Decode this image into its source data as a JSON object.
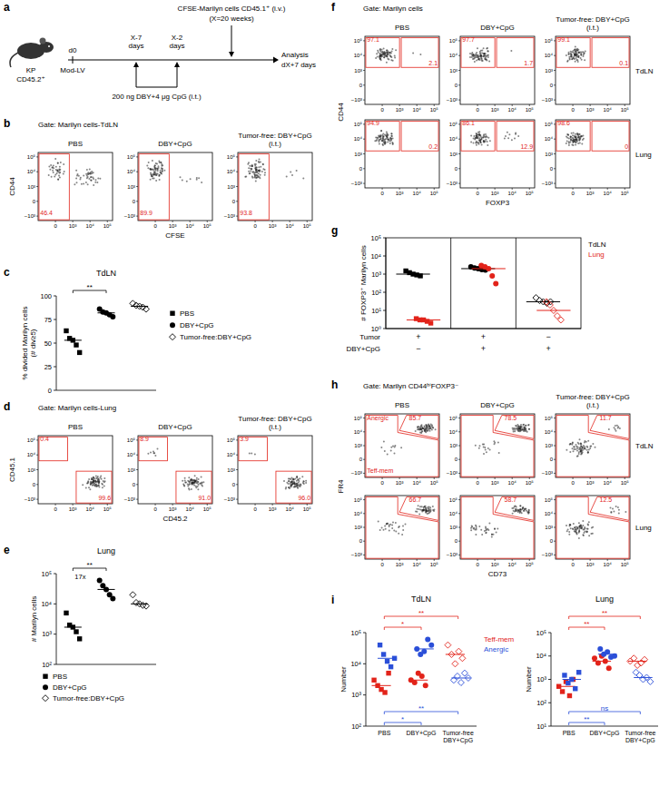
{
  "schematic": {
    "letter": "a",
    "mouse": [
      "KP",
      "CD45.2⁺"
    ],
    "start": [
      "d0",
      "Mod-LV"
    ],
    "doses": [
      "X-7 days",
      "X-2 days"
    ],
    "dose_text": "200 ng DBY+4 μg CpG (i.t.)",
    "transfer": [
      "CFSE-Marilyn cells CD45.1⁺ (i.v.)",
      "(X=20 weeks)"
    ],
    "end": [
      "Analysis",
      "dX+7 days"
    ]
  },
  "flow_axes": {
    "xlim": [
      -1000,
      200000
    ],
    "ylim": [
      -2000,
      200000
    ],
    "xticks": [
      0,
      {
        "value": 1000,
        "label": "10³"
      },
      {
        "value": 10000,
        "label": "10⁴"
      },
      {
        "value": 100000,
        "label": "10⁵"
      }
    ],
    "yticks": [
      {
        "value": -1000,
        "label": "−10³"
      },
      0,
      {
        "value": 1000,
        "label": "10³"
      },
      {
        "value": 10000,
        "label": "10⁴"
      },
      {
        "value": 100000,
        "label": "10⁵"
      }
    ]
  },
  "flow_panels": [
    {
      "letter": "b",
      "gate_title": "Gate: Marilyn cells-TdLN",
      "x_label": "CFSE",
      "y_label": "CD44",
      "kind": "cfse",
      "conditions": [
        "PBS",
        "DBY+CpG",
        "Tumor-free: DBY+CpG (i.t.)"
      ],
      "rows": [
        {
          "gates": [
            [
              46.4
            ],
            [
              89.9
            ],
            [
              93.8
            ]
          ]
        }
      ]
    },
    {
      "letter": "d",
      "gate_title": "Gate: Marilyn cells-Lung",
      "x_label": "CD45.2",
      "y_label": "CD45.1",
      "kind": "chimera",
      "conditions": [
        "PBS",
        "DBY+CpG",
        "Tumor-free: DBY+CpG (i.t.)"
      ],
      "rows": [
        {
          "gates": [
            [
              0.4,
              99.6
            ],
            [
              8.9,
              {
                "value": 91.0,
                "label": "91.0"
              }
            ],
            [
              3.9,
              {
                "value": 96.0,
                "label": "96.0"
              }
            ]
          ]
        }
      ]
    },
    {
      "letter": "f",
      "gate_title": "Gate: Marilyn cells",
      "x_label": "FOXP3",
      "y_label": "CD44",
      "kind": "foxp3",
      "conditions": [
        "PBS",
        "DBY+CpG",
        "Tumor-free: DBY+CpG (i.t.)"
      ],
      "rows": [
        {
          "label": "TdLN",
          "gates": [
            [
              97.1,
              2.1
            ],
            [
              97.7,
              1.7
            ],
            [
              99.1,
              0.1
            ]
          ]
        },
        {
          "label": "Lung",
          "gates": [
            [
              94.9,
              0.2
            ],
            [
              86.1,
              12.9
            ],
            [
              98.6,
              0
            ]
          ]
        }
      ]
    },
    {
      "letter": "h",
      "gate_title": "Gate: Marilyn CD44ʰⁱFOXP3⁻",
      "x_label": "CD73",
      "y_label": "FR4",
      "kind": "fr4",
      "gate_names": [
        "Anergic",
        "Teff-mem"
      ],
      "conditions": [
        "PBS",
        "DBY+CpG",
        "Tumor-free: DBY+CpG (i.t.)"
      ],
      "rows": [
        {
          "label": "TdLN",
          "gates": [
            [
              85.7
            ],
            [
              78.5
            ],
            [
              11.7
            ]
          ]
        },
        {
          "label": "Lung",
          "gates": [
            [
              66.7
            ],
            [
              58.7
            ],
            [
              12.5
            ]
          ]
        }
      ]
    }
  ],
  "chart_data": [
    {
      "letter": "c",
      "type": "dot",
      "title": "TdLN",
      "y_label": "% divided Marilyn cells (# div≥5)",
      "ylim": [
        0,
        100
      ],
      "yticks": [
        0,
        25,
        50,
        75,
        100
      ],
      "categories": [
        "PBS",
        "DBY+CpG",
        "Tumor-free:DBY+CpG"
      ],
      "marker": [
        "square",
        "circle",
        "diamond-open"
      ],
      "tick_labels": "y",
      "legend": "right",
      "series": [
        {
          "color": "#000000",
          "values": [
            [
              63,
              55,
              53,
              48,
              40
            ],
            [
              86,
              83,
              82,
              80,
              78
            ],
            [
              92,
              90,
              89,
              88,
              86
            ]
          ],
          "medians": [
            53,
            82,
            89
          ]
        }
      ],
      "annotations": [
        {
          "from": 0,
          "to": 1,
          "label": "**",
          "position": "top"
        }
      ]
    },
    {
      "letter": "e",
      "type": "dot",
      "title": "Lung",
      "y_label": "# Marilyn cells",
      "log": "y",
      "ylim": [
        100,
        100000
      ],
      "yticks": [
        {
          "value": 100,
          "label": "10²"
        },
        {
          "value": 1000,
          "label": "10³"
        },
        {
          "value": 10000,
          "label": "10⁴"
        },
        {
          "value": 100000,
          "label": "10⁵"
        }
      ],
      "categories": [
        "PBS",
        "DBY+CpG",
        "Tumor-free:DBY+CpG"
      ],
      "marker": [
        "square",
        "circle",
        "diamond-open"
      ],
      "tick_labels": "y",
      "legend": "bottom",
      "series": [
        {
          "color": "#000000",
          "values": [
            [
              5000,
              2000,
              1700,
              1200,
              700
            ],
            [
              60000,
              40000,
              30000,
              20000,
              15000
            ],
            [
              20000,
              11000,
              10000,
              9000,
              8500
            ]
          ],
          "medians": [
            1700,
            30000,
            10000
          ]
        }
      ],
      "annotations": [
        {
          "from": 0,
          "to": 1,
          "label": "**",
          "sublabel": "17x",
          "position": "top"
        }
      ]
    },
    {
      "letter": "g",
      "type": "dot",
      "y_label": "# FOXP3⁺ Marilyn cells",
      "log": "y",
      "ylim": [
        1,
        100000
      ],
      "yticks": [
        {
          "value": 1,
          "label": "10⁰"
        },
        {
          "value": 10,
          "label": "10¹"
        },
        {
          "value": 100,
          "label": "10²"
        },
        {
          "value": 1000,
          "label": "10³"
        },
        {
          "value": 10000,
          "label": "10⁴"
        },
        {
          "value": 100000,
          "label": "10⁵"
        }
      ],
      "categories": [
        null,
        null,
        null
      ],
      "marker": [
        "square",
        "circle",
        "diamond-open"
      ],
      "tick_labels": "y",
      "legend": "right",
      "condition_rows": [
        {
          "label": "Tumor",
          "values": [
            "+",
            "+",
            "−"
          ]
        },
        {
          "label": "DBY+CpG",
          "values": [
            "−",
            "+",
            "+"
          ]
        }
      ],
      "series": [
        {
          "name": "TdLN",
          "color": "#000000",
          "values": [
            [
              1500,
              1200,
              1000,
              900,
              800
            ],
            [
              2500,
              2200,
              2000,
              1800,
              1700
            ],
            [
              50,
              35,
              30,
              25,
              30
            ]
          ],
          "medians": [
            1000,
            2000,
            30
          ]
        },
        {
          "name": "Lung",
          "color": "#e2231a",
          "values": [
            [
              3.5,
              3,
              3,
              2.5,
              2
            ],
            [
              3000,
              2500,
              2000,
              800,
              300
            ],
            [
              30,
              20,
              10,
              5,
              3
            ]
          ],
          "medians": [
            3,
            2000,
            10
          ]
        }
      ]
    },
    {
      "letter": "i",
      "type": "dot",
      "title": "TdLN",
      "y_label": "Number",
      "log": "y",
      "ylim": [
        100,
        100000
      ],
      "yticks": [
        {
          "value": 100,
          "label": "10²"
        },
        {
          "value": 1000,
          "label": "10³"
        },
        {
          "value": 10000,
          "label": "10⁴"
        },
        {
          "value": 100000,
          "label": "10⁵"
        }
      ],
      "categories": [
        "PBS",
        "DBY+CpG",
        "Tumor-free DBY+CpG"
      ],
      "marker": [
        "square",
        "circle",
        "diamond-open"
      ],
      "legend": "right",
      "series": [
        {
          "name": "Teff-mem",
          "color": "#e2231a",
          "values": [
            [
              3000,
              2000,
              1500,
              1200,
              5000
            ],
            [
              3000,
              2500,
              5000,
              4000,
              2000
            ],
            [
              40000,
              20000,
              10000,
              25000,
              15000
            ]
          ],
          "medians": [
            2000,
            3000,
            20000
          ]
        },
        {
          "name": "Anergic",
          "color": "#2b4fd8",
          "values": [
            [
              40000,
              20000,
              12000,
              8000,
              15000
            ],
            [
              30000,
              20000,
              25000,
              60000,
              40000
            ],
            [
              3000,
              4000,
              2500,
              5000,
              3500
            ]
          ],
          "medians": [
            15000,
            30000,
            3500
          ]
        }
      ],
      "annotations": [
        {
          "from": 0,
          "to": 1,
          "label": "*",
          "position": "top",
          "color": "#e2231a"
        },
        {
          "from": 0,
          "to": 2,
          "label": "**",
          "position": "top",
          "color": "#e2231a"
        },
        {
          "from": 0,
          "to": 1,
          "label": "*",
          "position": "bottom",
          "color": "#2b4fd8"
        },
        {
          "from": 0,
          "to": 2,
          "label": "**",
          "position": "bottom",
          "color": "#2b4fd8"
        }
      ]
    },
    {
      "type": "dot",
      "title": "Lung",
      "y_label": "Number",
      "log": "y",
      "ylim": [
        10,
        100000
      ],
      "yticks": [
        {
          "value": 10,
          "label": "10¹"
        },
        {
          "value": 100,
          "label": "10²"
        },
        {
          "value": 1000,
          "label": "10³"
        },
        {
          "value": 10000,
          "label": "10⁴"
        },
        {
          "value": 100000,
          "label": "10⁵"
        }
      ],
      "categories": [
        "PBS",
        "DBY+CpG",
        "Tumor-free DBY+CpG"
      ],
      "marker": [
        "square",
        "circle",
        "diamond-open"
      ],
      "series": [
        {
          "color": "#e2231a",
          "values": [
            [
              500,
              300,
              800,
              200,
              1000
            ],
            [
              8000,
              5000,
              10000,
              6000,
              3000
            ],
            [
              6000,
              8000,
              4000,
              5000,
              7000
            ]
          ],
          "medians": [
            500,
            6000,
            6000
          ]
        },
        {
          "color": "#2b4fd8",
          "values": [
            [
              1500,
              700,
              1000,
              400,
              2000
            ],
            [
              20000,
              12000,
              15000,
              9000,
              10000
            ],
            [
              2000,
              1500,
              1000,
              1200,
              800
            ]
          ],
          "medians": [
            1000,
            12000,
            1200
          ]
        }
      ],
      "annotations": [
        {
          "from": 0,
          "to": 1,
          "label": "**",
          "position": "top",
          "color": "#e2231a"
        },
        {
          "from": 0,
          "to": 2,
          "label": "**",
          "position": "top",
          "color": "#e2231a"
        },
        {
          "from": 0,
          "to": 1,
          "label": "**",
          "position": "bottom",
          "color": "#2b4fd8"
        },
        {
          "from": 0,
          "to": 2,
          "label": "ns",
          "position": "bottom",
          "color": "#2b4fd8"
        }
      ]
    }
  ]
}
